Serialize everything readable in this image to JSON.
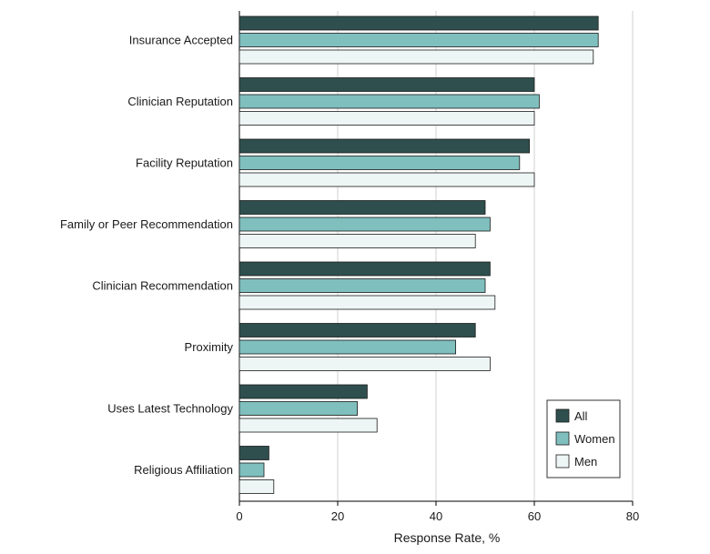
{
  "chart_data": {
    "type": "bar",
    "orientation": "horizontal",
    "categories": [
      "Insurance Accepted",
      "Clinician Reputation",
      "Facility Reputation",
      "Family or Peer Recommendation",
      "Clinician Recommendation",
      "Proximity",
      "Uses Latest Technology",
      "Religious Affiliation"
    ],
    "series": [
      {
        "name": "All",
        "color": "#2e4f4d",
        "values": [
          73,
          60,
          59,
          50,
          51,
          48,
          26,
          6
        ]
      },
      {
        "name": "Women",
        "color": "#7fbfbd",
        "values": [
          73,
          61,
          57,
          51,
          50,
          44,
          24,
          5
        ]
      },
      {
        "name": "Men",
        "color": "#eef6f5",
        "values": [
          72,
          60,
          60,
          48,
          52,
          51,
          28,
          7
        ]
      }
    ],
    "xlabel": "Response Rate, %",
    "xlim": [
      0,
      80
    ],
    "xticks": [
      0,
      20,
      40,
      60,
      80
    ],
    "grid": "vertical",
    "legend_position": "bottom-right"
  }
}
